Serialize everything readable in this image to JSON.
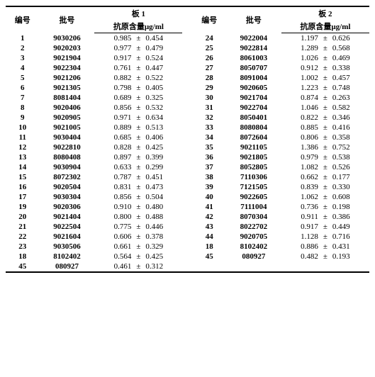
{
  "header": {
    "col_num": "编号",
    "col_batch": "批号",
    "plate1": "板 1",
    "plate2": "板 2",
    "antigen": "抗原含量µg/ml",
    "pm": "±"
  },
  "left": [
    {
      "n": "1",
      "b": "9030206",
      "v": "0.985",
      "s": "0.454"
    },
    {
      "n": "2",
      "b": "9020203",
      "v": "0.977",
      "s": "0.479"
    },
    {
      "n": "3",
      "b": "9021904",
      "v": "0.917",
      "s": "0.524"
    },
    {
      "n": "4",
      "b": "9022304",
      "v": "0.761",
      "s": "0.447"
    },
    {
      "n": "5",
      "b": "9021206",
      "v": "0.882",
      "s": "0.522"
    },
    {
      "n": "6",
      "b": "9021305",
      "v": "0.798",
      "s": "0.405"
    },
    {
      "n": "7",
      "b": "8081404",
      "v": "0.689",
      "s": "0.325"
    },
    {
      "n": "8",
      "b": "9020406",
      "v": "0.856",
      "s": "0.532"
    },
    {
      "n": "9",
      "b": "9020905",
      "v": "0.971",
      "s": "0.634"
    },
    {
      "n": "10",
      "b": "9021005",
      "v": "0.889",
      "s": "0.513"
    },
    {
      "n": "11",
      "b": "9030404",
      "v": "0.685",
      "s": "0.406"
    },
    {
      "n": "12",
      "b": "9022810",
      "v": "0.828",
      "s": "0.425"
    },
    {
      "n": "13",
      "b": "8080408",
      "v": "0.897",
      "s": "0.399"
    },
    {
      "n": "14",
      "b": "9030904",
      "v": "0.633",
      "s": "0.299"
    },
    {
      "n": "15",
      "b": "8072302",
      "v": "0.787",
      "s": "0.451"
    },
    {
      "n": "16",
      "b": "9020504",
      "v": "0.831",
      "s": "0.473"
    },
    {
      "n": "17",
      "b": "9030304",
      "v": "0.856",
      "s": "0.504"
    },
    {
      "n": "19",
      "b": "9020306",
      "v": "0.910",
      "s": "0.480"
    },
    {
      "n": "20",
      "b": "9021404",
      "v": "0.800",
      "s": "0.488"
    },
    {
      "n": "21",
      "b": "9022504",
      "v": "0.775",
      "s": "0.446"
    },
    {
      "n": "22",
      "b": "9021604",
      "v": "0.606",
      "s": "0.378"
    },
    {
      "n": "23",
      "b": "9030506",
      "v": "0.661",
      "s": "0.329"
    },
    {
      "n": "18",
      "b": "8102402",
      "v": "0.564",
      "s": "0.425"
    },
    {
      "n": "45",
      "b": "080927",
      "v": "0.461",
      "s": "0.312"
    }
  ],
  "right": [
    {
      "n": "24",
      "b": "9022004",
      "v": "1.197",
      "s": "0.626"
    },
    {
      "n": "25",
      "b": "9022814",
      "v": "1.289",
      "s": "0.568"
    },
    {
      "n": "26",
      "b": "8061003",
      "v": "1.026",
      "s": "0.469"
    },
    {
      "n": "27",
      "b": "8050707",
      "v": "0.912",
      "s": "0.338"
    },
    {
      "n": "28",
      "b": "8091004",
      "v": "1.002",
      "s": "0.457"
    },
    {
      "n": "29",
      "b": "9020605",
      "v": "1.223",
      "s": "0.748"
    },
    {
      "n": "30",
      "b": "9021704",
      "v": "0.874",
      "s": "0.263"
    },
    {
      "n": "31",
      "b": "9022704",
      "v": "1.046",
      "s": "0.582"
    },
    {
      "n": "32",
      "b": "8050401",
      "v": "0.822",
      "s": "0.346"
    },
    {
      "n": "33",
      "b": "8080804",
      "v": "0.885",
      "s": "0.416"
    },
    {
      "n": "34",
      "b": "8072604",
      "v": "0.806",
      "s": "0.358"
    },
    {
      "n": "35",
      "b": "9021105",
      "v": "1.386",
      "s": "0.752"
    },
    {
      "n": "36",
      "b": "9021805",
      "v": "0.979",
      "s": "0.538"
    },
    {
      "n": "37",
      "b": "8052805",
      "v": "1.082",
      "s": "0.526"
    },
    {
      "n": "38",
      "b": "7110306",
      "v": "0.662",
      "s": "0.177"
    },
    {
      "n": "39",
      "b": "7121505",
      "v": "0.839",
      "s": "0.330"
    },
    {
      "n": "40",
      "b": "9022605",
      "v": "1.062",
      "s": "0.608"
    },
    {
      "n": "41",
      "b": "7111004",
      "v": "0.736",
      "s": "0.198"
    },
    {
      "n": "42",
      "b": "8070304",
      "v": "0.911",
      "s": "0.386"
    },
    {
      "n": "43",
      "b": "8022702",
      "v": "0.917",
      "s": "0.449"
    },
    {
      "n": "44",
      "b": "9020705",
      "v": "1.128",
      "s": "0.716"
    },
    {
      "n": "18",
      "b": "8102402",
      "v": "0.886",
      "s": "0.431"
    },
    {
      "n": "45",
      "b": "080927",
      "v": "0.482",
      "s": "0.193"
    },
    null
  ]
}
